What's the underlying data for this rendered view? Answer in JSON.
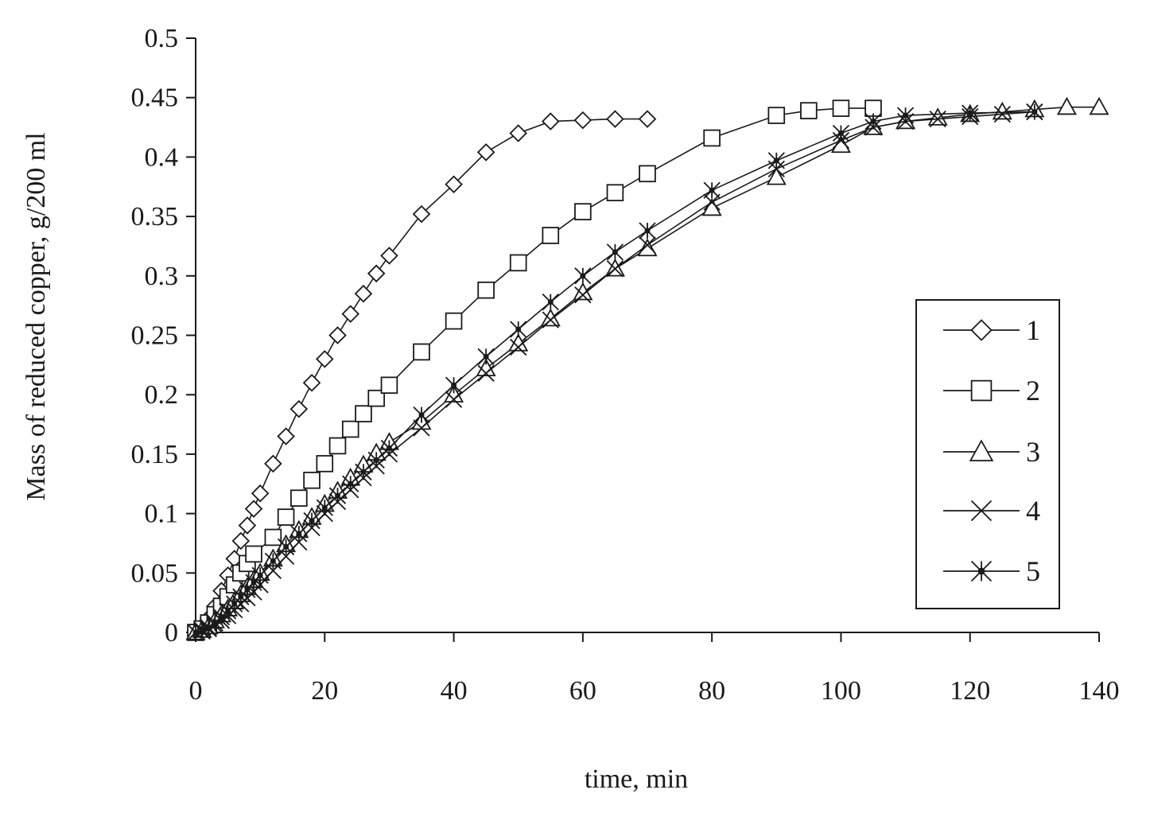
{
  "chart_data": {
    "type": "scatter",
    "title": "",
    "xlabel": "time, min",
    "ylabel": "Mass of reduced copper, g/200 ml",
    "xlim": [
      0,
      140
    ],
    "ylim": [
      0,
      0.5
    ],
    "xticks": [
      0,
      20,
      40,
      60,
      80,
      100,
      120,
      140
    ],
    "yticks": [
      0,
      0.05,
      0.1,
      0.15,
      0.2,
      0.25,
      0.3,
      0.35,
      0.4,
      0.45,
      0.5
    ],
    "xtick_labels": [
      "0",
      "20",
      "40",
      "60",
      "80",
      "100",
      "120",
      "140"
    ],
    "ytick_labels": [
      "0",
      "0.05",
      "0.1",
      "0.15",
      "0.2",
      "0.25",
      "0.3",
      "0.35",
      "0.4",
      "0.45",
      "0.5"
    ],
    "grid": false,
    "legend_position": "right",
    "series": [
      {
        "name": "1",
        "marker": "diamond",
        "points": [
          [
            0,
            0
          ],
          [
            1,
            0.005
          ],
          [
            2,
            0.012
          ],
          [
            3,
            0.022
          ],
          [
            4,
            0.035
          ],
          [
            5,
            0.048
          ],
          [
            6,
            0.062
          ],
          [
            7,
            0.077
          ],
          [
            8,
            0.09
          ],
          [
            9,
            0.104
          ],
          [
            10,
            0.117
          ],
          [
            12,
            0.142
          ],
          [
            14,
            0.165
          ],
          [
            16,
            0.188
          ],
          [
            18,
            0.21
          ],
          [
            20,
            0.23
          ],
          [
            22,
            0.25
          ],
          [
            24,
            0.268
          ],
          [
            26,
            0.285
          ],
          [
            28,
            0.302
          ],
          [
            30,
            0.317
          ],
          [
            35,
            0.352
          ],
          [
            40,
            0.377
          ],
          [
            45,
            0.404
          ],
          [
            50,
            0.42
          ],
          [
            55,
            0.43
          ],
          [
            60,
            0.431
          ],
          [
            65,
            0.432
          ],
          [
            70,
            0.432
          ]
        ]
      },
      {
        "name": "2",
        "marker": "square",
        "points": [
          [
            0,
            0
          ],
          [
            1,
            0.003
          ],
          [
            2,
            0.008
          ],
          [
            3,
            0.015
          ],
          [
            4,
            0.022
          ],
          [
            5,
            0.03
          ],
          [
            6,
            0.04
          ],
          [
            7,
            0.05
          ],
          [
            8,
            0.058
          ],
          [
            9,
            0.066
          ],
          [
            12,
            0.08
          ],
          [
            14,
            0.097
          ],
          [
            16,
            0.113
          ],
          [
            18,
            0.128
          ],
          [
            20,
            0.142
          ],
          [
            22,
            0.157
          ],
          [
            24,
            0.171
          ],
          [
            26,
            0.184
          ],
          [
            28,
            0.197
          ],
          [
            30,
            0.208
          ],
          [
            35,
            0.236
          ],
          [
            40,
            0.262
          ],
          [
            45,
            0.288
          ],
          [
            50,
            0.311
          ],
          [
            55,
            0.334
          ],
          [
            60,
            0.354
          ],
          [
            65,
            0.37
          ],
          [
            70,
            0.386
          ],
          [
            80,
            0.416
          ],
          [
            90,
            0.435
          ],
          [
            95,
            0.439
          ],
          [
            100,
            0.441
          ],
          [
            105,
            0.441
          ]
        ]
      },
      {
        "name": "3",
        "marker": "triangle",
        "points": [
          [
            0,
            0
          ],
          [
            1,
            0.002
          ],
          [
            2,
            0.005
          ],
          [
            3,
            0.01
          ],
          [
            4,
            0.015
          ],
          [
            5,
            0.02
          ],
          [
            6,
            0.026
          ],
          [
            7,
            0.032
          ],
          [
            8,
            0.038
          ],
          [
            9,
            0.044
          ],
          [
            10,
            0.05
          ],
          [
            12,
            0.062
          ],
          [
            14,
            0.074
          ],
          [
            16,
            0.086
          ],
          [
            18,
            0.097
          ],
          [
            20,
            0.108
          ],
          [
            22,
            0.119
          ],
          [
            24,
            0.13
          ],
          [
            26,
            0.141
          ],
          [
            28,
            0.151
          ],
          [
            30,
            0.16
          ],
          [
            35,
            0.177
          ],
          [
            40,
            0.2
          ],
          [
            45,
            0.222
          ],
          [
            50,
            0.243
          ],
          [
            55,
            0.264
          ],
          [
            60,
            0.286
          ],
          [
            65,
            0.306
          ],
          [
            70,
            0.323
          ],
          [
            80,
            0.357
          ],
          [
            90,
            0.383
          ],
          [
            100,
            0.41
          ],
          [
            105,
            0.425
          ],
          [
            110,
            0.43
          ],
          [
            115,
            0.433
          ],
          [
            120,
            0.436
          ],
          [
            125,
            0.438
          ],
          [
            130,
            0.44
          ],
          [
            135,
            0.442
          ],
          [
            140,
            0.442
          ]
        ]
      },
      {
        "name": "4",
        "marker": "x",
        "points": [
          [
            0,
            0
          ],
          [
            1,
            0.001
          ],
          [
            2,
            0.003
          ],
          [
            3,
            0.006
          ],
          [
            4,
            0.01
          ],
          [
            5,
            0.014
          ],
          [
            6,
            0.019
          ],
          [
            7,
            0.024
          ],
          [
            8,
            0.029
          ],
          [
            9,
            0.034
          ],
          [
            10,
            0.04
          ],
          [
            12,
            0.052
          ],
          [
            14,
            0.064
          ],
          [
            16,
            0.076
          ],
          [
            18,
            0.088
          ],
          [
            20,
            0.1
          ],
          [
            22,
            0.11
          ],
          [
            24,
            0.12
          ],
          [
            26,
            0.13
          ],
          [
            28,
            0.14
          ],
          [
            30,
            0.15
          ],
          [
            35,
            0.172
          ],
          [
            40,
            0.196
          ],
          [
            45,
            0.218
          ],
          [
            50,
            0.24
          ],
          [
            55,
            0.263
          ],
          [
            60,
            0.284
          ],
          [
            65,
            0.306
          ],
          [
            70,
            0.326
          ],
          [
            80,
            0.362
          ],
          [
            90,
            0.39
          ],
          [
            100,
            0.414
          ],
          [
            105,
            0.425
          ],
          [
            110,
            0.43
          ],
          [
            115,
            0.432
          ],
          [
            120,
            0.434
          ],
          [
            125,
            0.436
          ],
          [
            130,
            0.438
          ]
        ]
      },
      {
        "name": "5",
        "marker": "asterisk",
        "points": [
          [
            0,
            0
          ],
          [
            1,
            0.002
          ],
          [
            2,
            0.004
          ],
          [
            3,
            0.008
          ],
          [
            4,
            0.013
          ],
          [
            5,
            0.018
          ],
          [
            6,
            0.024
          ],
          [
            7,
            0.03
          ],
          [
            8,
            0.036
          ],
          [
            9,
            0.042
          ],
          [
            10,
            0.048
          ],
          [
            12,
            0.06
          ],
          [
            14,
            0.072
          ],
          [
            16,
            0.083
          ],
          [
            18,
            0.094
          ],
          [
            20,
            0.105
          ],
          [
            22,
            0.115
          ],
          [
            24,
            0.125
          ],
          [
            26,
            0.135
          ],
          [
            28,
            0.145
          ],
          [
            30,
            0.155
          ],
          [
            35,
            0.183
          ],
          [
            40,
            0.208
          ],
          [
            45,
            0.232
          ],
          [
            50,
            0.255
          ],
          [
            55,
            0.278
          ],
          [
            60,
            0.3
          ],
          [
            65,
            0.32
          ],
          [
            70,
            0.338
          ],
          [
            80,
            0.372
          ],
          [
            90,
            0.397
          ],
          [
            100,
            0.42
          ],
          [
            105,
            0.43
          ],
          [
            110,
            0.435
          ],
          [
            120,
            0.437
          ],
          [
            130,
            0.438
          ]
        ]
      }
    ]
  }
}
